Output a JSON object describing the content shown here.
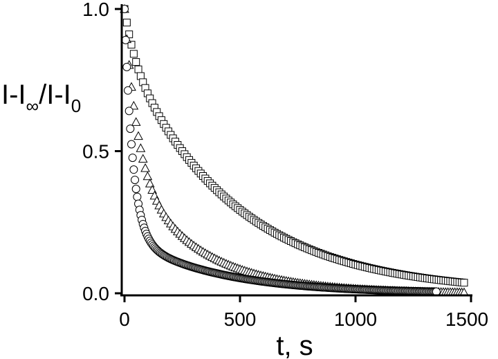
{
  "chart_data": {
    "type": "scatter",
    "title": "",
    "xlabel": "t, s",
    "ylabel": {
      "parts": [
        "I-I",
        "∞",
        "/I-I",
        "0"
      ]
    },
    "xlim": [
      -10,
      1500
    ],
    "ylim": [
      -0.01,
      1.0
    ],
    "x_ticks": [
      0,
      500,
      1000,
      1500
    ],
    "x_tick_labels": [
      "0",
      "500",
      "1000",
      "1500"
    ],
    "y_ticks": [
      0.0,
      0.5,
      1.0
    ],
    "y_tick_labels": [
      "0.0",
      "0.5",
      "1.0"
    ],
    "grid": false,
    "legend": "none",
    "series": [
      {
        "marker": "square",
        "x_start": 0,
        "x_end": 1470,
        "x_step": 10,
        "model": {
          "type": "exp_sum",
          "terms": [
            [
              0.15,
              45
            ],
            [
              0.85,
              470
            ]
          ],
          "offset": 0.0
        },
        "stroke": "#000000"
      },
      {
        "marker": "triangle",
        "x_start": 0,
        "x_end": 1470,
        "x_step": 10,
        "model": {
          "type": "exp_sum",
          "terms": [
            [
              0.55,
              55
            ],
            [
              0.45,
              300
            ]
          ],
          "offset": 0.0
        },
        "stroke": "#000000"
      },
      {
        "marker": "circle",
        "x_start": 0,
        "x_end": 1350,
        "x_step": 5,
        "model": {
          "type": "exp_sum",
          "terms": [
            [
              0.8,
              35
            ],
            [
              0.2,
              380
            ]
          ],
          "offset": 0.0
        },
        "stroke": "#000000"
      }
    ]
  }
}
